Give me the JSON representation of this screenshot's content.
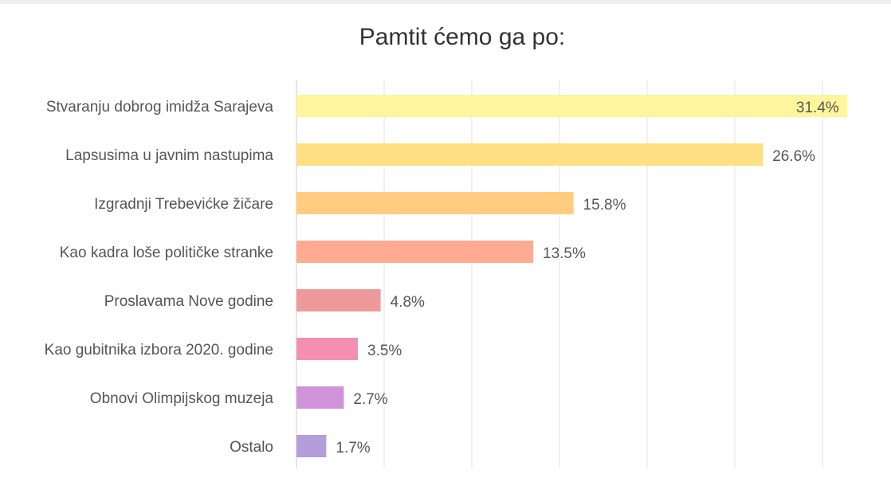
{
  "chart_data": {
    "type": "bar",
    "orientation": "horizontal",
    "title": "Pamtit ćemo ga po:",
    "xlabel": "",
    "ylabel": "",
    "categories": [
      "Stvaranju dobrog imidža Sarajeva",
      "Lapsusima u javnim nastupima",
      "Izgradnji Trebevićke žičare",
      "Kao kadra loše političke stranke",
      "Proslavama Nove godine",
      "Kao gubitnika izbora 2020. godine",
      "Obnovi Olimpijskog muzeja",
      "Ostalo"
    ],
    "values": [
      31.4,
      26.6,
      15.8,
      13.5,
      4.8,
      3.5,
      2.7,
      1.7
    ],
    "value_labels": [
      "31.4%",
      "26.6%",
      "15.8%",
      "13.5%",
      "4.8%",
      "3.5%",
      "2.7%",
      "1.7%"
    ],
    "colors": [
      "#fff59d",
      "#ffe082",
      "#ffcc80",
      "#ffab91",
      "#ef9a9a",
      "#f48fb1",
      "#ce93d8",
      "#b39ddb"
    ],
    "xlim": [
      0,
      30
    ],
    "grid": true,
    "legend": "none"
  }
}
